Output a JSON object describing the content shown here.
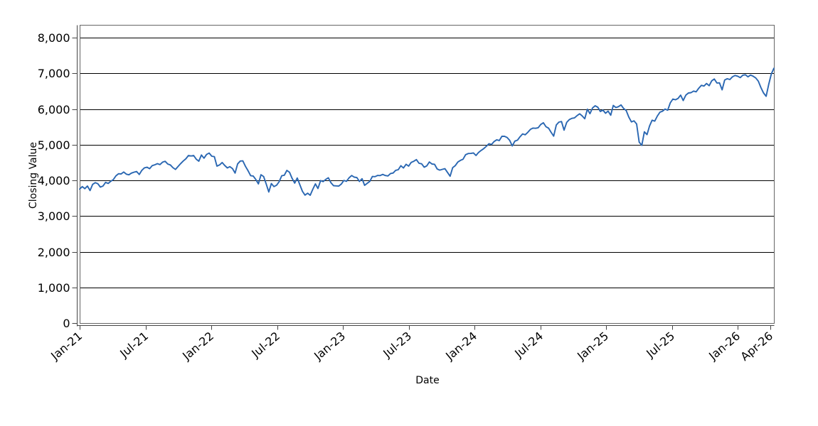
{
  "chart_data": {
    "type": "line",
    "xlabel": "Date",
    "ylabel": "Closing Value",
    "x_tick_labels": [
      {
        "label": "Jan-21",
        "month": 0
      },
      {
        "label": "Jul-21",
        "month": 6
      },
      {
        "label": "Jan-22",
        "month": 12
      },
      {
        "label": "Jul-22",
        "month": 18
      },
      {
        "label": "Jan-23",
        "month": 24
      },
      {
        "label": "Jul-23",
        "month": 30
      },
      {
        "label": "Jan-24",
        "month": 36
      },
      {
        "label": "Jul-24",
        "month": 42
      },
      {
        "label": "Jan-25",
        "month": 48
      },
      {
        "label": "Jul-25",
        "month": 54
      },
      {
        "label": "Jan-26",
        "month": 60
      },
      {
        "label": "Apr-26",
        "month": 63
      }
    ],
    "y_ticks": [
      {
        "value": 0,
        "label": "0"
      },
      {
        "value": 1000,
        "label": "1,000"
      },
      {
        "value": 2000,
        "label": "2,000"
      },
      {
        "value": 3000,
        "label": "3,000"
      },
      {
        "value": 4000,
        "label": "4,000"
      },
      {
        "value": 5000,
        "label": "5,000"
      },
      {
        "value": 6000,
        "label": "6,000"
      },
      {
        "value": 7000,
        "label": "7,000"
      },
      {
        "value": 8000,
        "label": "8,000"
      }
    ],
    "ylim": [
      0,
      8360
    ],
    "x_span_months": 63.3,
    "grid": {
      "horizontal": true,
      "vertical": false
    },
    "legend": {
      "visible": false
    },
    "colors": {
      "line": "#2a67b2",
      "grid": "#000000",
      "frame": "#666666",
      "axis": "#444444",
      "text": "#000000",
      "background": "#ffffff"
    },
    "series": [
      {
        "name": "Closing Value",
        "start_label": "Jan-21",
        "end_label": "Apr-26",
        "span_months": 63.3,
        "values": [
          3756,
          3825,
          3768,
          3841,
          3714,
          3887,
          3935,
          3907,
          3811,
          3842,
          3943,
          3913,
          3975,
          4020,
          4129,
          4185,
          4180,
          4233,
          4174,
          4156,
          4204,
          4230,
          4247,
          4166,
          4281,
          4352,
          4370,
          4327,
          4412,
          4437,
          4468,
          4442,
          4510,
          4535,
          4459,
          4433,
          4357,
          4307,
          4391,
          4471,
          4545,
          4605,
          4698,
          4683,
          4698,
          4595,
          4538,
          4712,
          4621,
          4726,
          4766,
          4677,
          4663,
          4398,
          4432,
          4501,
          4419,
          4349,
          4385,
          4329,
          4204,
          4463,
          4543,
          4546,
          4393,
          4272,
          4132,
          4123,
          4024,
          3901,
          4158,
          4109,
          3901,
          3675,
          3912,
          3825,
          3863,
          3962,
          4130,
          4145,
          4280,
          4228,
          4058,
          3924,
          4067,
          3873,
          3693,
          3586,
          3640,
          3583,
          3753,
          3901,
          3771,
          3993,
          3965,
          4026,
          4072,
          3934,
          3852,
          3845,
          3840,
          3895,
          3999,
          3973,
          4071,
          4136,
          4090,
          4079,
          3970,
          4046,
          3862,
          3917,
          3971,
          4109,
          4105,
          4138,
          4134,
          4169,
          4136,
          4124,
          4192,
          4205,
          4282,
          4299,
          4410,
          4348,
          4450,
          4399,
          4505,
          4536,
          4582,
          4478,
          4464,
          4370,
          4406,
          4516,
          4458,
          4450,
          4320,
          4288,
          4309,
          4328,
          4224,
          4117,
          4358,
          4415,
          4514,
          4560,
          4594,
          4719,
          4754,
          4755,
          4770,
          4697,
          4784,
          4840,
          4891,
          4959,
          5027,
          5006,
          5089,
          5137,
          5117,
          5234,
          5235,
          5204,
          5123,
          4967,
          5100,
          5128,
          5223,
          5303,
          5278,
          5347,
          5431,
          5465,
          5460,
          5475,
          5567,
          5615,
          5505,
          5463,
          5346,
          5240,
          5554,
          5634,
          5648,
          5408,
          5626,
          5703,
          5738,
          5751,
          5815,
          5865,
          5808,
          5729,
          5996,
          5870,
          6032,
          6090,
          6051,
          5931,
          5971,
          5882,
          5942,
          5827,
          6101,
          6041,
          6066,
          6115,
          6013,
          5955,
          5770,
          5639,
          5668,
          5581,
          5074,
          4983,
          5363,
          5283,
          5525,
          5687,
          5660,
          5803,
          5912,
          5939,
          6000,
          5968,
          6173,
          6280,
          6260,
          6297,
          6389,
          6238,
          6389,
          6450,
          6460,
          6502,
          6482,
          6584,
          6664,
          6644,
          6716,
          6654,
          6792,
          6841,
          6729,
          6734,
          6538,
          6813,
          6849,
          6828,
          6902,
          6940,
          6920,
          6882,
          6948,
          6961,
          6903,
          6952,
          6918,
          6871,
          6782,
          6598,
          6452,
          6358,
          6690,
          6985,
          7142
        ]
      }
    ]
  }
}
